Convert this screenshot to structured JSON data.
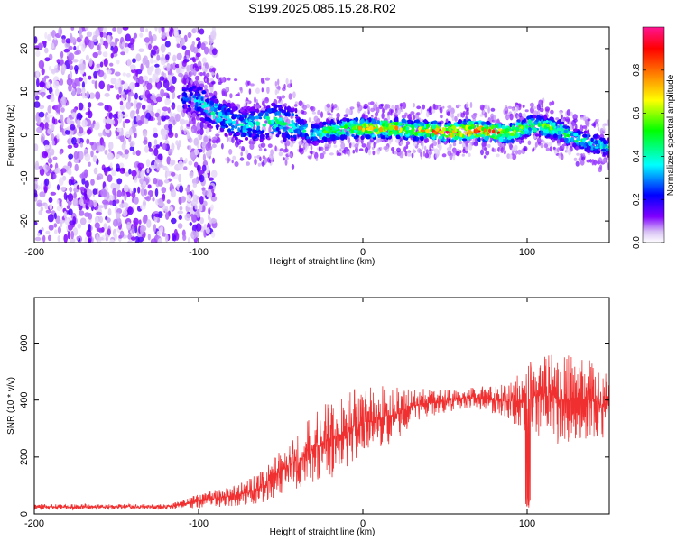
{
  "figure": {
    "title": "S199.2025.085.15.28.R02"
  },
  "chart_data": [
    {
      "type": "heatmap",
      "xlabel": "Height of straight line (km)",
      "ylabel": "Frequency (Hz)",
      "xlim": [
        -200,
        150
      ],
      "ylim": [
        -25,
        25
      ],
      "x_ticks": [
        -200,
        -100,
        0,
        100
      ],
      "y_ticks": [
        -20,
        -10,
        0,
        10,
        20
      ],
      "colorbar": {
        "label": "Normalized spectral amplitude",
        "range": [
          0,
          1
        ],
        "ticks": [
          "0.0",
          "0.2",
          "0.4",
          "0.6",
          "0.8"
        ],
        "colors": [
          "#ffffff",
          "#8000ff",
          "#0000ff",
          "#00ffff",
          "#00ff00",
          "#ffff00",
          "#ff8000",
          "#ff0000",
          "#ff1493"
        ]
      },
      "ridge": {
        "x": [
          -110,
          -100,
          -90,
          -80,
          -70,
          -60,
          -50,
          -40,
          -30,
          -20,
          -10,
          0,
          10,
          20,
          30,
          40,
          50,
          60,
          70,
          80,
          90,
          100,
          110,
          120,
          130,
          140,
          150
        ],
        "frequency": [
          9,
          8,
          5,
          3,
          2,
          3,
          3,
          2,
          0,
          1,
          1.5,
          1.5,
          1.5,
          1.5,
          1,
          1,
          0.5,
          1,
          1,
          0.5,
          0.5,
          2,
          2,
          1,
          -1,
          -2,
          -3
        ],
        "amplitude": [
          0.3,
          0.38,
          0.45,
          0.4,
          0.42,
          0.45,
          0.5,
          0.45,
          0.5,
          0.6,
          0.65,
          0.72,
          0.8,
          0.78,
          0.76,
          0.8,
          0.9,
          0.92,
          0.94,
          0.88,
          0.7,
          0.6,
          0.62,
          0.58,
          0.5,
          0.45,
          0.4
        ]
      },
      "noise_region": {
        "x_range": [
          -200,
          -100
        ],
        "amplitude_level": 0.15
      }
    },
    {
      "type": "line",
      "xlabel": "Height of straight line (km)",
      "ylabel": "SNR (10 * v/v)",
      "xlim": [
        -200,
        150
      ],
      "ylim": [
        0,
        760
      ],
      "x_ticks": [
        -200,
        -100,
        0,
        100
      ],
      "y_ticks": [
        0,
        200,
        400,
        600
      ],
      "series": [
        {
          "color": "#f03030",
          "x": [
            -200,
            -180,
            -160,
            -140,
            -120,
            -110,
            -100,
            -90,
            -80,
            -70,
            -60,
            -50,
            -40,
            -30,
            -20,
            -10,
            0,
            10,
            20,
            30,
            40,
            50,
            60,
            70,
            80,
            90,
            100,
            110,
            120,
            130,
            140,
            150
          ],
          "mean": [
            25,
            25,
            25,
            25,
            25,
            35,
            45,
            55,
            60,
            75,
            100,
            150,
            190,
            230,
            260,
            290,
            320,
            340,
            350,
            380,
            390,
            395,
            405,
            410,
            400,
            395,
            400,
            420,
            400,
            410,
            395,
            380
          ],
          "spread": [
            10,
            10,
            10,
            10,
            10,
            15,
            25,
            30,
            35,
            45,
            60,
            80,
            100,
            120,
            140,
            150,
            120,
            110,
            100,
            60,
            50,
            40,
            35,
            40,
            50,
            70,
            130,
            150,
            160,
            150,
            140,
            120
          ]
        }
      ]
    }
  ]
}
